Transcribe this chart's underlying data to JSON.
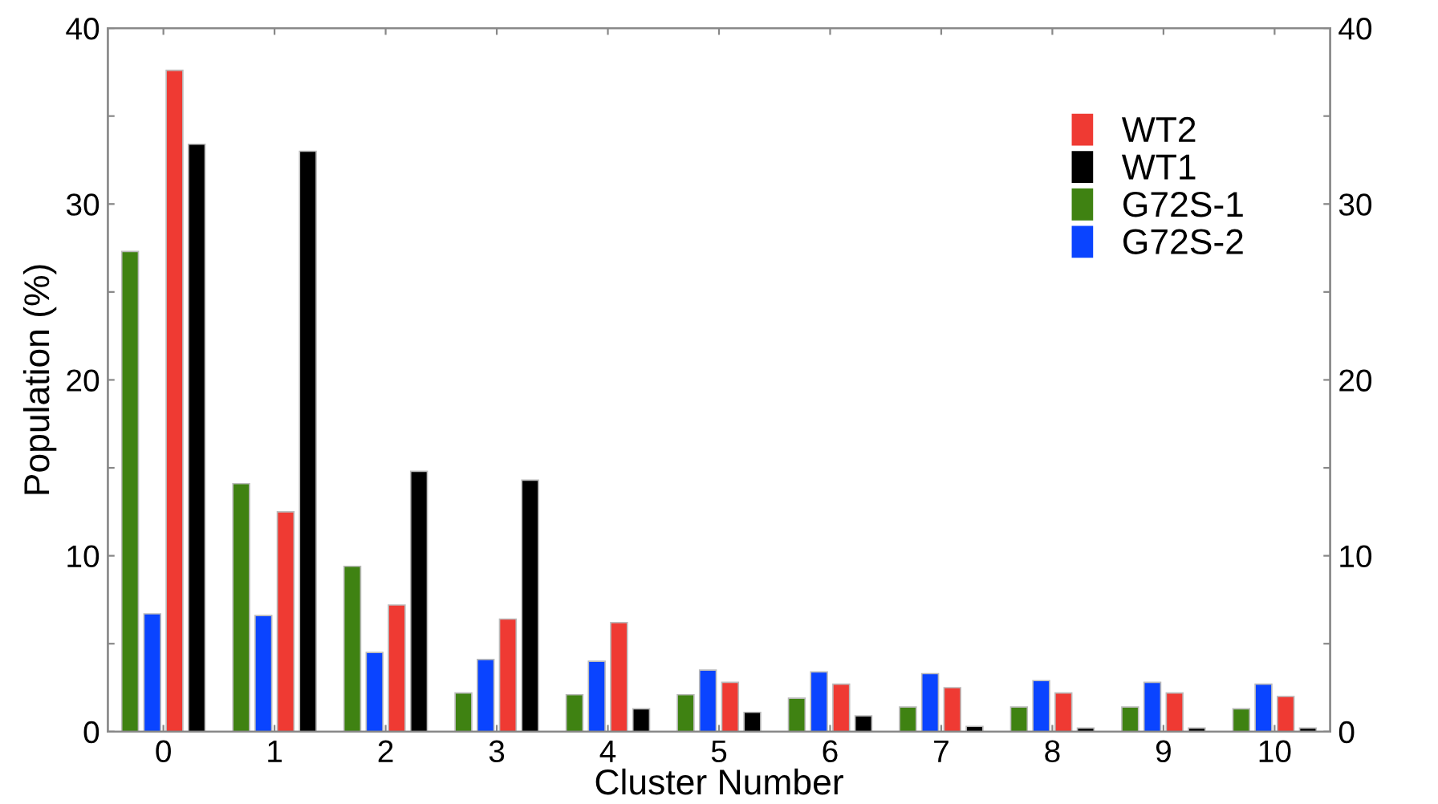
{
  "chart_data": {
    "type": "bar",
    "xlabel": "Cluster Number",
    "ylabel": "Population (%)",
    "categories": [
      "0",
      "1",
      "2",
      "3",
      "4",
      "5",
      "6",
      "7",
      "8",
      "9",
      "10"
    ],
    "series": [
      {
        "name": "G72S-1",
        "color": "#3f8212",
        "values": [
          27.3,
          14.1,
          9.4,
          2.2,
          2.1,
          2.1,
          1.9,
          1.4,
          1.4,
          1.4,
          1.3
        ]
      },
      {
        "name": "G72S-2",
        "color": "#0a44ff",
        "values": [
          6.7,
          6.6,
          4.5,
          4.1,
          4.0,
          3.5,
          3.4,
          3.3,
          2.9,
          2.8,
          2.7
        ]
      },
      {
        "name": "WT2",
        "color": "#ef3a33",
        "values": [
          37.6,
          12.5,
          7.2,
          6.4,
          6.2,
          2.8,
          2.7,
          2.5,
          2.2,
          2.2,
          2.0
        ]
      },
      {
        "name": "WT1",
        "color": "#000000",
        "values": [
          33.4,
          33.0,
          14.8,
          14.3,
          1.3,
          1.1,
          0.9,
          0.3,
          0.2,
          0.2,
          0.2
        ]
      }
    ],
    "ylim": [
      0,
      40
    ],
    "yticks": [
      0,
      {
        "value": 5,
        "label": null
      },
      10,
      {
        "value": 15,
        "label": null
      },
      20,
      {
        "value": 25,
        "label": null
      },
      30,
      {
        "value": 35,
        "label": null
      },
      40
    ],
    "y2lim": [
      0,
      40
    ],
    "y2ticks": [
      0,
      {
        "value": 5,
        "label": null
      },
      10,
      {
        "value": 15,
        "label": null
      },
      20,
      {
        "value": 25,
        "label": null
      },
      30,
      {
        "value": 35,
        "label": null
      },
      40
    ],
    "legend": "top right",
    "grid": false
  }
}
